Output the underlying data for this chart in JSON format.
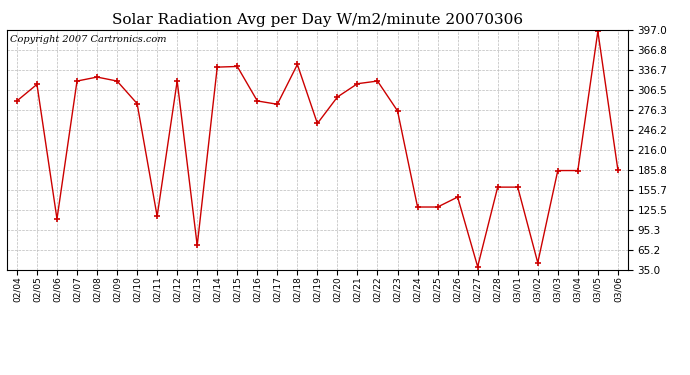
{
  "title": "Solar Radiation Avg per Day W/m2/minute 20070306",
  "copyright": "Copyright 2007 Cartronics.com",
  "x_labels": [
    "02/04",
    "02/05",
    "02/06",
    "02/07",
    "02/08",
    "02/09",
    "02/10",
    "02/11",
    "02/12",
    "02/13",
    "02/14",
    "02/15",
    "02/16",
    "02/17",
    "02/18",
    "02/19",
    "02/20",
    "02/21",
    "02/22",
    "02/23",
    "02/24",
    "02/25",
    "02/26",
    "02/27",
    "02/28",
    "03/01",
    "03/02",
    "03/03",
    "03/04",
    "03/05",
    "03/06"
  ],
  "y_values": [
    290,
    315,
    112,
    320,
    326,
    320,
    286,
    116,
    320,
    72,
    341,
    342,
    290,
    285,
    345,
    256,
    296,
    316,
    320,
    275,
    130,
    130,
    145,
    40,
    160,
    160,
    46,
    185,
    185,
    395,
    186
  ],
  "y_ticks": [
    35.0,
    65.2,
    95.3,
    125.5,
    155.7,
    185.8,
    216.0,
    246.2,
    276.3,
    306.5,
    336.7,
    366.8,
    397.0
  ],
  "ylim": [
    35.0,
    397.0
  ],
  "line_color": "#cc0000",
  "bg_color": "#ffffff",
  "grid_color": "#bbbbbb",
  "title_fontsize": 11,
  "copyright_fontsize": 7,
  "tick_fontsize": 7.5,
  "xtick_fontsize": 6.5
}
